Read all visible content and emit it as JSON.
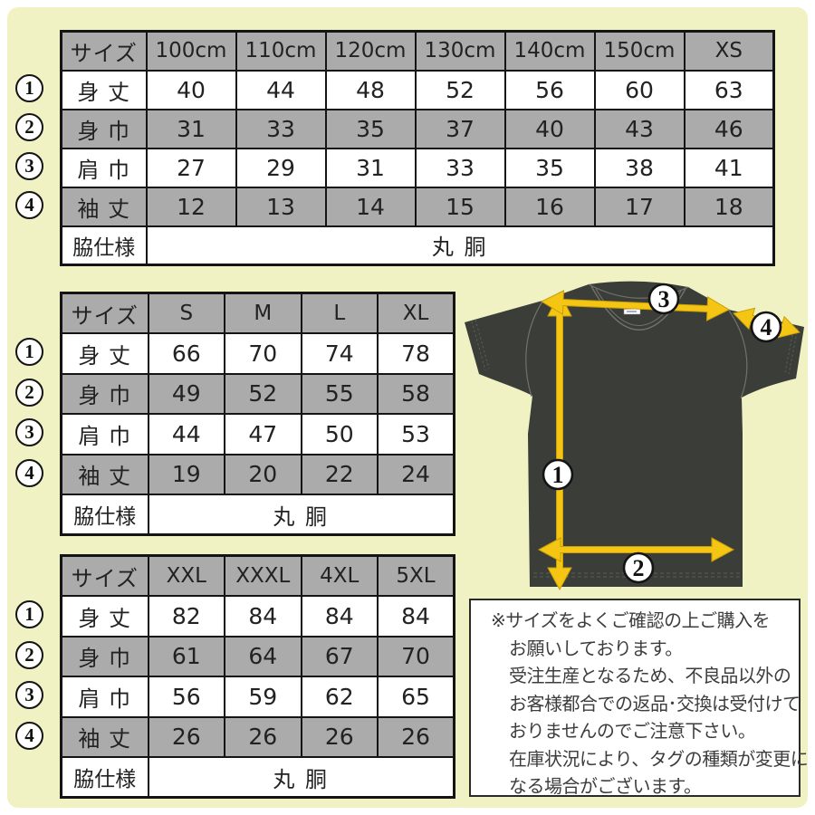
{
  "colors": {
    "background_cream": "#f1f2c3",
    "row_gray": "#ababab",
    "border_black": "#141414",
    "arrow_yellow": "#f4c613",
    "tshirt_dark": "#3b3d39"
  },
  "size_tables": [
    {
      "id": "kids",
      "header": [
        "サイズ",
        "100cm",
        "110cm",
        "120cm",
        "130cm",
        "140cm",
        "150cm",
        "XS"
      ],
      "rows": [
        {
          "num": "1",
          "label": "身 丈",
          "values": [
            "40",
            "44",
            "48",
            "52",
            "56",
            "60",
            "63"
          ]
        },
        {
          "num": "2",
          "label": "身 巾",
          "values": [
            "31",
            "33",
            "35",
            "37",
            "40",
            "43",
            "46"
          ]
        },
        {
          "num": "3",
          "label": "肩 巾",
          "values": [
            "27",
            "29",
            "31",
            "33",
            "35",
            "38",
            "41"
          ]
        },
        {
          "num": "4",
          "label": "袖 丈",
          "values": [
            "12",
            "13",
            "14",
            "15",
            "16",
            "17",
            "18"
          ]
        }
      ],
      "footer": {
        "label": "脇仕様",
        "value": "丸 胴"
      }
    },
    {
      "id": "adult",
      "header": [
        "サイズ",
        "S",
        "M",
        "L",
        "XL"
      ],
      "rows": [
        {
          "num": "1",
          "label": "身 丈",
          "values": [
            "66",
            "70",
            "74",
            "78"
          ]
        },
        {
          "num": "2",
          "label": "身 巾",
          "values": [
            "49",
            "52",
            "55",
            "58"
          ]
        },
        {
          "num": "3",
          "label": "肩 巾",
          "values": [
            "44",
            "47",
            "50",
            "53"
          ]
        },
        {
          "num": "4",
          "label": "袖 丈",
          "values": [
            "19",
            "20",
            "22",
            "24"
          ]
        }
      ],
      "footer": {
        "label": "脇仕様",
        "value": "丸 胴"
      }
    },
    {
      "id": "big",
      "header": [
        "サイズ",
        "XXL",
        "XXXL",
        "4XL",
        "5XL"
      ],
      "rows": [
        {
          "num": "1",
          "label": "身 丈",
          "values": [
            "82",
            "84",
            "84",
            "84"
          ]
        },
        {
          "num": "2",
          "label": "身 巾",
          "values": [
            "61",
            "64",
            "67",
            "70"
          ]
        },
        {
          "num": "3",
          "label": "肩 巾",
          "values": [
            "56",
            "59",
            "62",
            "65"
          ]
        },
        {
          "num": "4",
          "label": "袖 丈",
          "values": [
            "26",
            "26",
            "26",
            "26"
          ]
        }
      ],
      "footer": {
        "label": "脇仕様",
        "value": "丸 胴"
      }
    }
  ],
  "diagram": {
    "arrows": [
      {
        "label": "1",
        "measure": "身丈"
      },
      {
        "label": "2",
        "measure": "身巾"
      },
      {
        "label": "3",
        "measure": "肩巾"
      },
      {
        "label": "4",
        "measure": "袖丈"
      }
    ]
  },
  "notice": {
    "lines": [
      "※サイズをよくご確認の上ご購入を",
      "お願いしております。",
      "受注生産となるため、不良品以外の",
      "お客様都合での返品･交換は受付けて",
      "おりませんのでご注意下さい。",
      "在庫状況により、タグの種類が変更に",
      "なる場合がございます。"
    ]
  }
}
